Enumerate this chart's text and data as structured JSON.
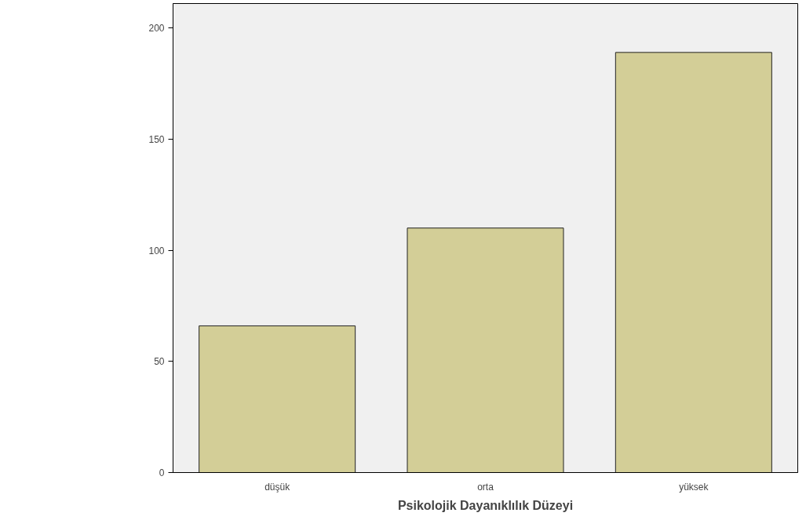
{
  "chart_data": {
    "type": "bar",
    "xlabel": "Psikolojik Dayanıklılık Düzeyi",
    "categories": [
      "düşük",
      "orta",
      "yüksek"
    ],
    "values": [
      66,
      110,
      189
    ],
    "color": "#d3ce97",
    "ylim": [
      0,
      211
    ],
    "yticks": [
      0,
      50,
      100,
      150,
      200
    ],
    "grid": false
  }
}
